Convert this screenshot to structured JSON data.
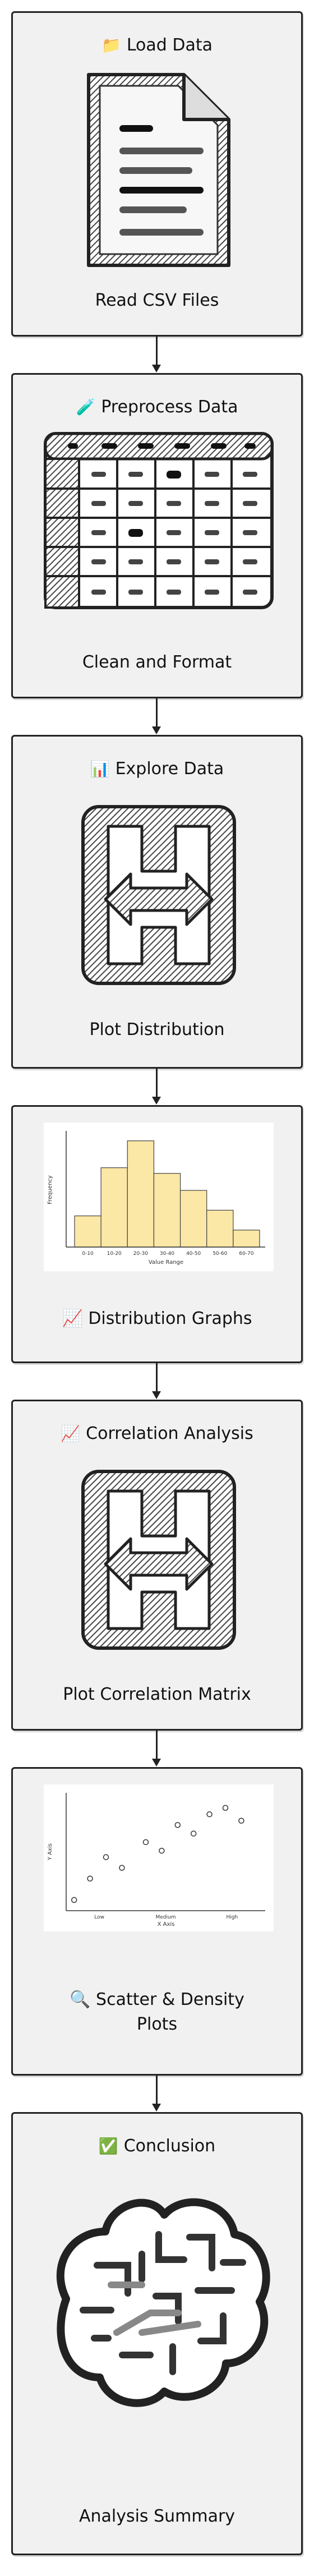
{
  "steps": [
    {
      "emoji": "📁",
      "title": "Load Data",
      "caption": "Read CSV Files",
      "icon": "document-icon"
    },
    {
      "emoji": "🧪",
      "title": "Preprocess Data",
      "caption": "Clean and Format",
      "icon": "table-icon"
    },
    {
      "emoji": "📊",
      "title": "Explore Data",
      "caption": "Plot Distribution",
      "icon": "split-arrows-icon"
    },
    {
      "emoji": "",
      "title": "",
      "caption": "📈 Distribution Graphs",
      "icon": "histogram-image"
    },
    {
      "emoji": "📈",
      "title": "Correlation Analysis",
      "caption": "Plot Correlation Matrix",
      "icon": "split-arrows-icon"
    },
    {
      "emoji": "",
      "title": "",
      "caption_line1": "🔍 Scatter & Density",
      "caption_line2": "Plots",
      "icon": "scatter-plot-image"
    },
    {
      "emoji": "✅",
      "title": "Conclusion",
      "caption": "Analysis Summary",
      "icon": "brain-icon"
    }
  ],
  "histogram_chart": {
    "chart_data": {
      "type": "bar",
      "categories": [
        "0-10",
        "10-20",
        "20-30",
        "30-40",
        "40-50",
        "50-60",
        "60-70"
      ],
      "values": [
        2.2,
        5.6,
        7.5,
        5.2,
        4.0,
        2.6,
        1.2
      ],
      "xlabel": "Value Range",
      "ylabel": "Frequency",
      "ylim": [
        0,
        8
      ],
      "bar_color": "#fbe7a6"
    }
  },
  "scatter_chart": {
    "chart_data": {
      "type": "scatter",
      "x": [
        0.2,
        0.6,
        1.0,
        1.4,
        2.0,
        2.4,
        2.8,
        3.2,
        3.6,
        4.0,
        4.4
      ],
      "y": [
        0.5,
        1.5,
        2.5,
        2.0,
        3.2,
        2.8,
        4.0,
        3.6,
        4.5,
        4.8,
        4.2
      ],
      "x_tick_labels": [
        "Low",
        "Medium",
        "High"
      ],
      "xlabel": "X Axis",
      "ylabel": "Y Axis",
      "xlim": [
        0,
        5
      ],
      "ylim": [
        0,
        5.5
      ]
    }
  },
  "colors": {
    "border": "#222222",
    "card_fill": "#f1f1f1",
    "sketch": "#333333"
  }
}
